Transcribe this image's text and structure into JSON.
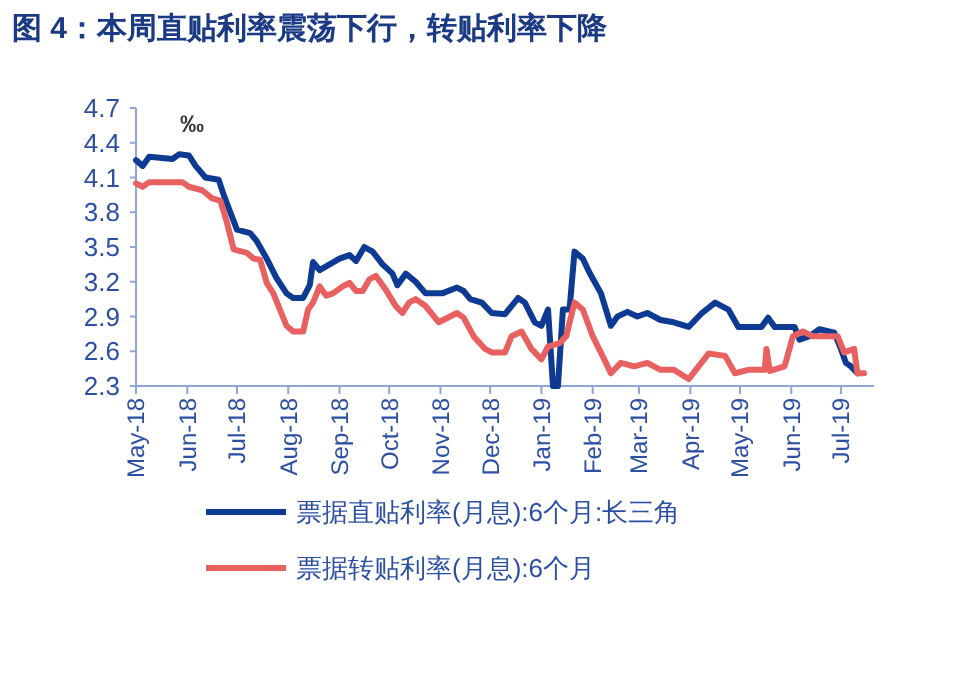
{
  "chart_data": {
    "type": "line",
    "title": "图 4：本周直贴利率震荡下行，转贴利率下降",
    "ylabel": "‰",
    "xlim": [
      "2018-05-01",
      "2019-07-21"
    ],
    "xticks": [
      {
        "value": "2018-05-01",
        "label": "May-18"
      },
      {
        "value": "2018-06-01",
        "label": "Jun-18"
      },
      {
        "value": "2018-07-01",
        "label": "Jul-18"
      },
      {
        "value": "2018-08-01",
        "label": "Aug-18"
      },
      {
        "value": "2018-09-01",
        "label": "Sep-18"
      },
      {
        "value": "2018-10-01",
        "label": "Oct-18"
      },
      {
        "value": "2018-11-01",
        "label": "Nov-18"
      },
      {
        "value": "2018-12-01",
        "label": "Dec-18"
      },
      {
        "value": "2019-01-01",
        "label": "Jan-19"
      },
      {
        "value": "2019-02-01",
        "label": "Feb-19"
      },
      {
        "value": "2019-03-01",
        "label": "Mar-19"
      },
      {
        "value": "2019-04-01",
        "label": "Apr-19"
      },
      {
        "value": "2019-05-01",
        "label": "May-19"
      },
      {
        "value": "2019-06-01",
        "label": "Jun-19"
      },
      {
        "value": "2019-07-01",
        "label": "Jul-19"
      }
    ],
    "ylim": [
      2.3,
      4.7
    ],
    "yticks": [
      2.3,
      2.6,
      2.9,
      3.2,
      3.5,
      3.8,
      4.1,
      4.4,
      4.7
    ],
    "grid": false,
    "legend": "bottom",
    "marker": "none",
    "line_style": "solid",
    "series": [
      {
        "name": "票据直贴利率(月息):6个月:长三角",
        "color": "#0d3b94",
        "x": [
          "2018-05-01",
          "2018-05-05",
          "2018-05-09",
          "2018-05-23",
          "2018-05-27",
          "2018-06-02",
          "2018-06-06",
          "2018-06-12",
          "2018-06-20",
          "2018-06-23",
          "2018-06-27",
          "2018-07-01",
          "2018-07-09",
          "2018-07-13",
          "2018-07-19",
          "2018-07-25",
          "2018-07-31",
          "2018-08-04",
          "2018-08-10",
          "2018-08-14",
          "2018-08-16",
          "2018-08-20",
          "2018-08-26",
          "2018-09-01",
          "2018-09-07",
          "2018-09-11",
          "2018-09-16",
          "2018-09-21",
          "2018-09-27",
          "2018-10-03",
          "2018-10-06",
          "2018-10-11",
          "2018-10-17",
          "2018-10-23",
          "2018-11-02",
          "2018-11-11",
          "2018-11-15",
          "2018-11-19",
          "2018-11-26",
          "2018-12-02",
          "2018-12-10",
          "2018-12-18",
          "2018-12-22",
          "2018-12-28",
          "2019-01-01",
          "2019-01-05",
          "2019-01-08",
          "2019-01-11",
          "2019-01-14",
          "2019-01-18",
          "2019-01-21",
          "2019-01-26",
          "2019-01-30",
          "2019-02-06",
          "2019-02-12",
          "2019-02-16",
          "2019-02-22",
          "2019-02-28",
          "2019-03-06",
          "2019-03-14",
          "2019-03-22",
          "2019-03-31",
          "2019-04-08",
          "2019-04-16",
          "2019-04-24",
          "2019-04-30",
          "2019-05-14",
          "2019-05-18",
          "2019-05-22",
          "2019-06-03",
          "2019-06-06",
          "2019-06-12",
          "2019-06-18",
          "2019-06-27",
          "2019-07-01",
          "2019-07-04",
          "2019-07-07",
          "2019-07-11"
        ],
        "values": [
          4.25,
          4.2,
          4.28,
          4.26,
          4.3,
          4.29,
          4.2,
          4.1,
          4.08,
          3.95,
          3.8,
          3.65,
          3.62,
          3.55,
          3.4,
          3.23,
          3.1,
          3.06,
          3.06,
          3.17,
          3.37,
          3.3,
          3.35,
          3.4,
          3.43,
          3.38,
          3.5,
          3.46,
          3.35,
          3.27,
          3.17,
          3.27,
          3.2,
          3.1,
          3.1,
          3.15,
          3.12,
          3.05,
          3.02,
          2.93,
          2.92,
          3.06,
          3.02,
          2.85,
          2.82,
          2.96,
          2.3,
          2.3,
          2.96,
          2.96,
          3.46,
          3.4,
          3.28,
          3.1,
          2.82,
          2.9,
          2.94,
          2.9,
          2.93,
          2.87,
          2.85,
          2.81,
          2.93,
          3.02,
          2.96,
          2.81,
          2.81,
          2.89,
          2.81,
          2.81,
          2.7,
          2.73,
          2.79,
          2.76,
          2.62,
          2.5,
          2.47,
          2.41
        ]
      },
      {
        "name": "票据转贴利率(月息):6个月",
        "color": "#e8605f",
        "x": [
          "2018-05-01",
          "2018-05-05",
          "2018-05-09",
          "2018-05-29",
          "2018-06-02",
          "2018-06-10",
          "2018-06-16",
          "2018-06-21",
          "2018-06-25",
          "2018-06-29",
          "2018-07-07",
          "2018-07-11",
          "2018-07-15",
          "2018-07-19",
          "2018-07-23",
          "2018-07-27",
          "2018-07-31",
          "2018-08-04",
          "2018-08-10",
          "2018-08-13",
          "2018-08-16",
          "2018-08-20",
          "2018-08-24",
          "2018-08-28",
          "2018-09-03",
          "2018-09-07",
          "2018-09-11",
          "2018-09-15",
          "2018-09-19",
          "2018-09-23",
          "2018-09-29",
          "2018-10-05",
          "2018-10-09",
          "2018-10-13",
          "2018-10-17",
          "2018-10-23",
          "2018-10-31",
          "2018-11-11",
          "2018-11-15",
          "2018-11-21",
          "2018-11-28",
          "2018-12-02",
          "2018-12-10",
          "2018-12-14",
          "2018-12-20",
          "2018-12-26",
          "2019-01-01",
          "2019-01-05",
          "2019-01-12",
          "2019-01-16",
          "2019-01-21",
          "2019-01-26",
          "2019-02-01",
          "2019-02-08",
          "2019-02-12",
          "2019-02-18",
          "2019-02-26",
          "2019-03-06",
          "2019-03-14",
          "2019-03-22",
          "2019-03-31",
          "2019-04-06",
          "2019-04-12",
          "2019-04-22",
          "2019-04-28",
          "2019-05-06",
          "2019-05-16",
          "2019-05-17",
          "2019-05-19",
          "2019-05-28",
          "2019-06-02",
          "2019-06-08",
          "2019-06-14",
          "2019-06-29",
          "2019-07-03",
          "2019-07-09",
          "2019-07-11",
          "2019-07-15"
        ],
        "values": [
          4.05,
          4.02,
          4.06,
          4.06,
          4.02,
          3.99,
          3.92,
          3.9,
          3.71,
          3.48,
          3.45,
          3.4,
          3.39,
          3.19,
          3.1,
          2.96,
          2.82,
          2.77,
          2.77,
          2.96,
          3.02,
          3.16,
          3.08,
          3.1,
          3.16,
          3.19,
          3.12,
          3.12,
          3.22,
          3.25,
          3.13,
          2.99,
          2.93,
          3.02,
          3.05,
          2.99,
          2.85,
          2.93,
          2.89,
          2.73,
          2.62,
          2.59,
          2.59,
          2.73,
          2.77,
          2.62,
          2.53,
          2.64,
          2.67,
          2.73,
          3.02,
          2.96,
          2.73,
          2.53,
          2.41,
          2.5,
          2.47,
          2.5,
          2.44,
          2.44,
          2.36,
          2.47,
          2.58,
          2.56,
          2.41,
          2.44,
          2.44,
          2.62,
          2.43,
          2.47,
          2.73,
          2.77,
          2.73,
          2.73,
          2.59,
          2.62,
          2.41,
          2.41
        ]
      }
    ]
  }
}
